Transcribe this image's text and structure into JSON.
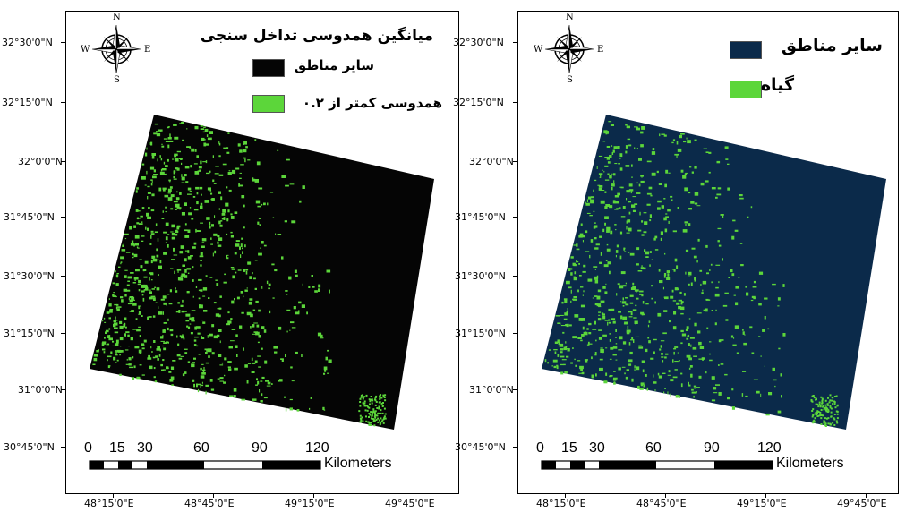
{
  "latitudes": [
    "32°30'0\"N",
    "32°15'0\"N",
    "32°0'0\"N",
    "31°45'0\"N",
    "31°30'0\"N",
    "31°15'0\"N",
    "31°0'0\"N",
    "30°45'0\"N"
  ],
  "longitudes": [
    "48°15'0\"E",
    "48°45'0\"E",
    "49°15'0\"E",
    "49°45'0\"E"
  ],
  "compass": {
    "n": "N",
    "s": "S",
    "e": "E",
    "w": "W"
  },
  "scale": {
    "ticks": [
      "0",
      "15",
      "30",
      "60",
      "90",
      "120"
    ],
    "unit": "Kilometers"
  },
  "colors": {
    "background_left": "#050505",
    "background_right": "#0b2a4a",
    "vegetation": "#5cd63a",
    "frame": "#000000"
  },
  "left_map": {
    "legend_title": "میانگین همدوسی تداخل سنجی",
    "legend_items": [
      {
        "label": "سایر مناطق",
        "color": "#050505"
      },
      {
        "label": "همدوسی کمتر از ۰.۲",
        "color": "#5cd63a"
      }
    ]
  },
  "right_map": {
    "legend_items": [
      {
        "label": "سایر مناطق",
        "color": "#0b2a4a"
      },
      {
        "label": "گیاه",
        "color": "#5cd63a"
      }
    ]
  }
}
